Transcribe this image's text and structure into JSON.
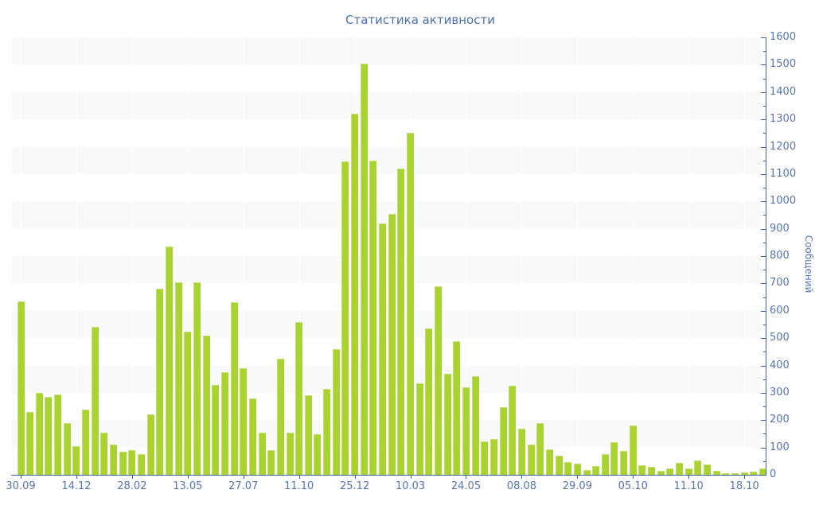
{
  "title": "Статистика активности",
  "colors": {
    "bar": "#a9d32e",
    "bar_edge": "#c4e06c",
    "axis_line": "#3d5fa4",
    "tick_label": "#5673b9",
    "title_text": "#4a6eb5",
    "band_gray": "#f9f9f9",
    "background": "#ffffff"
  },
  "chart_data": {
    "type": "bar",
    "title": "Статистика активности",
    "xlabel": "",
    "ylabel": "Сообщений",
    "ylim": [
      0,
      1600
    ],
    "y_tick_step": 100,
    "y_minor_tick_step": 50,
    "y_tick_labels": [
      "0",
      "100",
      "200",
      "300",
      "400",
      "500",
      "600",
      "700",
      "800",
      "900",
      "1000",
      "1100",
      "1200",
      "1300",
      "1400",
      "1500",
      "1600"
    ],
    "y_axis_position": "right",
    "grid": "horizontal alternating gray/white bands every 100 units",
    "legend_position": "none",
    "x_labels": [
      "30.09",
      "14.12",
      "28.02",
      "13.05",
      "27.07",
      "11.10",
      "25.12",
      "10.03",
      "24.05",
      "08.08",
      "29.09",
      "05.10",
      "11.10",
      "18.10"
    ],
    "x_label_bar_indices": [
      0,
      6,
      12,
      18,
      24,
      30,
      36,
      42,
      48,
      54,
      60,
      66,
      72,
      78
    ],
    "values": [
      635,
      230,
      300,
      285,
      295,
      190,
      105,
      240,
      540,
      155,
      110,
      85,
      90,
      75,
      220,
      680,
      835,
      705,
      525,
      705,
      510,
      330,
      375,
      630,
      390,
      280,
      155,
      90,
      425,
      155,
      560,
      290,
      148,
      315,
      460,
      1145,
      1320,
      1505,
      1150,
      920,
      955,
      1120,
      1250,
      335,
      535,
      690,
      370,
      490,
      320,
      360,
      122,
      132,
      248,
      325,
      168,
      112,
      188,
      93,
      71,
      46,
      40,
      18,
      32,
      77,
      119,
      86,
      180,
      35,
      28,
      14,
      23,
      43,
      22,
      52,
      37,
      14,
      5,
      6,
      8,
      11,
      22
    ]
  }
}
